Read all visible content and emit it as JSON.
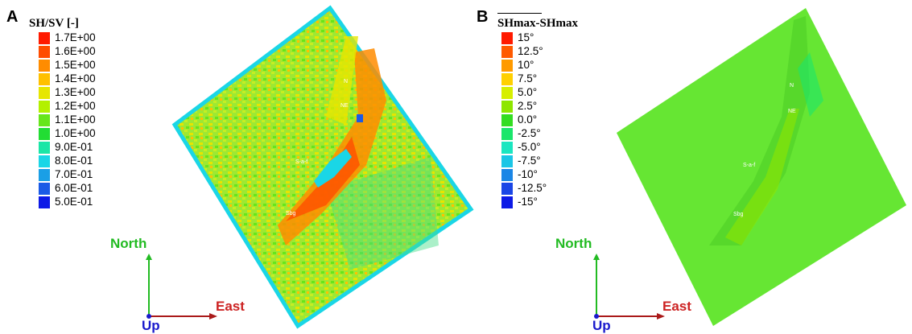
{
  "panel_a": {
    "letter": "A",
    "legend_title": "SH/SV  [-]",
    "legend": [
      {
        "label": "1.7E+00",
        "color": "#ff1a00"
      },
      {
        "label": "1.6E+00",
        "color": "#ff4d00"
      },
      {
        "label": "1.5E+00",
        "color": "#ff8c00"
      },
      {
        "label": "1.4E+00",
        "color": "#ffc000"
      },
      {
        "label": "1.3E+00",
        "color": "#e6e600"
      },
      {
        "label": "1.2E+00",
        "color": "#b3f000"
      },
      {
        "label": "1.1E+00",
        "color": "#66e61a"
      },
      {
        "label": "1.0E+00",
        "color": "#22dd33"
      },
      {
        "label": "9.0E-01",
        "color": "#1ae6a6"
      },
      {
        "label": "8.0E-01",
        "color": "#1ad6e6"
      },
      {
        "label": "7.0E-01",
        "color": "#1a9fe6"
      },
      {
        "label": "6.0E-01",
        "color": "#1a5ae6"
      },
      {
        "label": "5.0E-01",
        "color": "#0d1ae6"
      }
    ],
    "axes": {
      "north": "North",
      "east": "East",
      "up": "Up"
    },
    "point_labels": [
      "Sbg",
      "S-a-f",
      "NE",
      "N"
    ]
  },
  "panel_b": {
    "letter": "B",
    "legend_title": "SHmax-SHmax",
    "legend": [
      {
        "label": "15°",
        "color": "#ff1a00"
      },
      {
        "label": "12.5°",
        "color": "#ff5a00"
      },
      {
        "label": "10°",
        "color": "#ff9a00"
      },
      {
        "label": "7.5°",
        "color": "#ffd000"
      },
      {
        "label": "5.0°",
        "color": "#d6ef00"
      },
      {
        "label": "2.5°",
        "color": "#8ee600"
      },
      {
        "label": "0.0°",
        "color": "#33dd22"
      },
      {
        "label": "-2.5°",
        "color": "#1ae66b"
      },
      {
        "label": "-5.0°",
        "color": "#1ae6c0"
      },
      {
        "label": "-7.5°",
        "color": "#1ac6e6"
      },
      {
        "label": "-10°",
        "color": "#1a86e6"
      },
      {
        "label": "-12.5°",
        "color": "#1a46e6"
      },
      {
        "label": "-15°",
        "color": "#0d1ae6"
      }
    ],
    "axes": {
      "north": "North",
      "east": "East",
      "up": "Up"
    },
    "point_labels": [
      "Sbg",
      "S-a-f",
      "NE",
      "N"
    ]
  },
  "colors": {
    "north_axis": "#22bb22",
    "east_axis": "#aa1a1a",
    "up_axis": "#1a1acc",
    "model_base_a": "#9ee833",
    "model_base_b": "#66e633"
  }
}
